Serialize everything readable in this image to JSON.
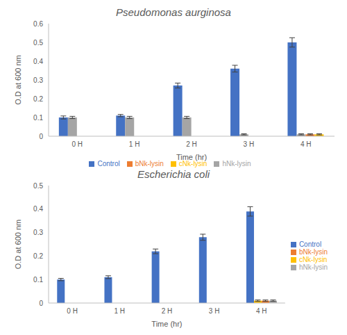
{
  "chart_data": [
    {
      "type": "bar",
      "title": "Pseudomonas aurginosa",
      "x_label": "Time (hr)",
      "y_label": "O.D at 600 nm",
      "categories": [
        "0 H",
        "1 H",
        "2 H",
        "3 H",
        "4 H"
      ],
      "ylim": [
        0,
        0.6
      ],
      "yticks": [
        0,
        0.1,
        0.2,
        0.3,
        0.4,
        0.5,
        0.6
      ],
      "grid": false,
      "legend": "bottom",
      "series": [
        {
          "name": "Control",
          "color": "#4472c4",
          "values": [
            0.1,
            0.11,
            0.27,
            0.36,
            0.5
          ],
          "errors": [
            0.008,
            0.006,
            0.013,
            0.018,
            0.025
          ]
        },
        {
          "name": "hNk-lysin",
          "color": "#a5a5a5",
          "values": [
            0.1,
            0.1,
            0.1,
            0.01,
            0.01
          ],
          "errors": [
            0.006,
            0.006,
            0.006,
            0.003,
            0.003
          ]
        },
        {
          "name": "bNk-lysin",
          "color": "#ed7d31",
          "values": [
            null,
            null,
            null,
            null,
            0.01
          ],
          "errors": [
            null,
            null,
            null,
            null,
            0.003
          ]
        },
        {
          "name": "cNk-lysin",
          "color": "#ffc000",
          "values": [
            null,
            null,
            null,
            null,
            0.01
          ],
          "errors": [
            null,
            null,
            null,
            null,
            0.003
          ]
        }
      ]
    },
    {
      "type": "bar",
      "title": "Escherichia coli",
      "x_label": "Time (hr)",
      "y_label": "O.D at 600 nm",
      "categories": [
        "0 H",
        "1 H",
        "2 H",
        "3 H",
        "4 H"
      ],
      "ylim": [
        0,
        0.5
      ],
      "yticks": [
        0,
        0.1,
        0.2,
        0.3,
        0.4,
        0.5
      ],
      "grid": false,
      "legend": "right",
      "series": [
        {
          "name": "Control",
          "color": "#4472c4",
          "values": [
            0.1,
            0.11,
            0.22,
            0.28,
            0.39
          ],
          "errors": [
            0.005,
            0.006,
            0.01,
            0.013,
            0.02
          ]
        },
        {
          "name": "cNk-lysin",
          "color": "#ffc000",
          "values": [
            null,
            null,
            null,
            null,
            0.01
          ],
          "errors": [
            null,
            null,
            null,
            null,
            0.003
          ]
        },
        {
          "name": "bNk-lysin",
          "color": "#ed7d31",
          "values": [
            null,
            null,
            null,
            null,
            0.01
          ],
          "errors": [
            null,
            null,
            null,
            null,
            0.003
          ]
        },
        {
          "name": "hNk-lysin",
          "color": "#a5a5a5",
          "values": [
            null,
            null,
            null,
            null,
            0.01
          ],
          "errors": [
            null,
            null,
            null,
            null,
            0.003
          ]
        }
      ]
    }
  ]
}
